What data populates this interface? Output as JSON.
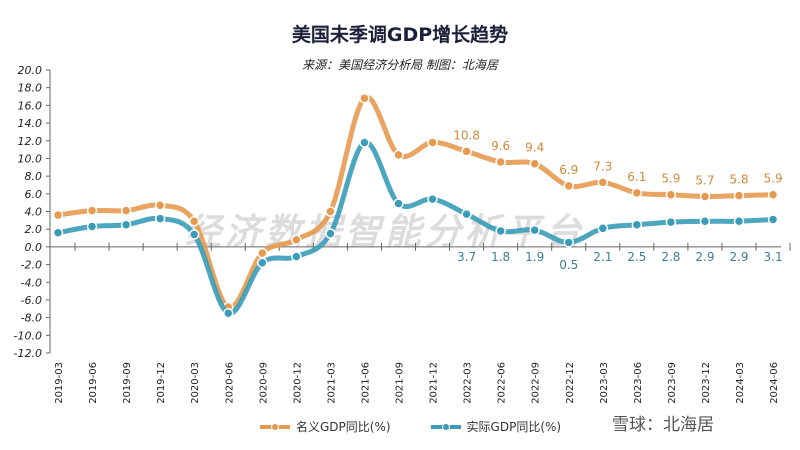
{
  "chart_data": {
    "type": "line",
    "title": "美国未季调GDP增长趋势",
    "subtitle": "来源：美国经济分析局 制图：北海居",
    "categories": [
      "2019-03",
      "2019-06",
      "2019-09",
      "2019-12",
      "2020-03",
      "2020-06",
      "2020-09",
      "2020-12",
      "2021-03",
      "2021-06",
      "2021-09",
      "2021-12",
      "2022-03",
      "2022-06",
      "2022-09",
      "2022-12",
      "2023-03",
      "2023-06",
      "2023-09",
      "2023-12",
      "2024-03",
      "2024-06"
    ],
    "ylim": [
      -12,
      20
    ],
    "yticks": [
      "20.0",
      "18.0",
      "16.0",
      "14.0",
      "12.0",
      "10.0",
      "8.0",
      "6.0",
      "4.0",
      "2.0",
      "0.0",
      "-2.0",
      "-4.0",
      "-6.0",
      "-8.0",
      "-10.0",
      "-12.0"
    ],
    "legend_position": "bottom",
    "grid": false,
    "series": [
      {
        "name": "名义GDP同比(%)",
        "color": "#e59a4f",
        "values": [
          3.6,
          4.1,
          4.1,
          4.7,
          2.9,
          -6.8,
          -0.7,
          0.8,
          4.0,
          16.8,
          10.4,
          11.8,
          10.8,
          9.6,
          9.4,
          6.9,
          7.3,
          6.1,
          5.9,
          5.7,
          5.8,
          5.9
        ],
        "labels": [
          "",
          "",
          "",
          "",
          "",
          "",
          "",
          "",
          "",
          "",
          "",
          "",
          "10.8",
          "9.6",
          "9.4",
          "6.9",
          "7.3",
          "6.1",
          "5.9",
          "5.7",
          "5.8",
          "5.9"
        ]
      },
      {
        "name": "实际GDP同比(%)",
        "color": "#3a9cb8",
        "values": [
          1.6,
          2.3,
          2.5,
          3.2,
          1.4,
          -7.5,
          -1.8,
          -1.1,
          1.5,
          11.8,
          4.9,
          5.4,
          3.7,
          1.8,
          1.9,
          0.5,
          2.1,
          2.5,
          2.8,
          2.9,
          2.9,
          3.1
        ],
        "labels": [
          "",
          "",
          "",
          "",
          "",
          "",
          "",
          "",
          "",
          "",
          "",
          "",
          "3.7",
          "1.8",
          "1.9",
          "0.5",
          "2.1",
          "2.5",
          "2.8",
          "2.9",
          "2.9",
          "3.1"
        ]
      }
    ]
  },
  "watermark": {
    "platform": "经济数据智能分析平台",
    "source": "雪球：北海居"
  }
}
